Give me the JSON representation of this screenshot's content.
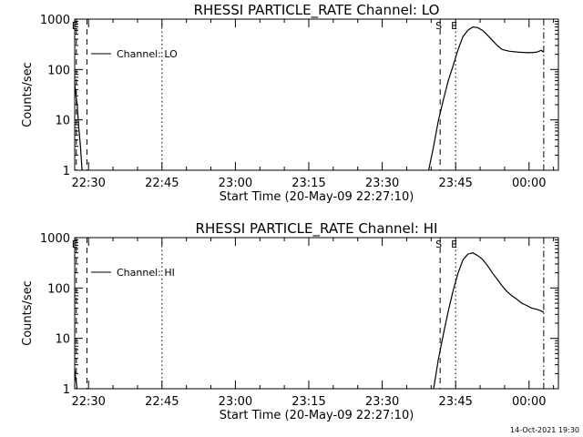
{
  "footer": {
    "timestamp": "14-Oct-2021 19:30"
  },
  "chart_data": [
    {
      "type": "line",
      "title": "RHESSI PARTICLE_RATE Channel: LO",
      "xlabel": "Start Time (20-May-09 22:27:10)",
      "ylabel": "Counts/sec",
      "yscale": "log",
      "ylim": [
        1,
        1000
      ],
      "x_range": [
        "22:27:10",
        "00:06:00"
      ],
      "x_ticks": [
        "22:30",
        "22:45",
        "23:00",
        "23:15",
        "23:30",
        "23:45",
        "00:00"
      ],
      "y_ticks": [
        "1",
        "10",
        "100",
        "1000"
      ],
      "legend": {
        "label": "Channel: LO",
        "position": "top-left"
      },
      "markers": [
        {
          "label": "E",
          "time": "22:27:30",
          "style": "dashed"
        },
        {
          "time": "22:29:40",
          "style": "dashed"
        },
        {
          "time": "22:45:00",
          "style": "dotted"
        },
        {
          "label": "S",
          "time": "23:41:50",
          "style": "dashed"
        },
        {
          "label": "E",
          "time": "23:45:00",
          "style": "dotted"
        },
        {
          "time": "00:03:00",
          "style": "dashdot"
        }
      ],
      "series": [
        {
          "segments": [
            [
              [
                "22:27:10",
                50
              ],
              [
                "22:27:40",
                20
              ],
              [
                "22:28:00",
                7
              ],
              [
                "22:28:20",
                3
              ],
              [
                "22:28:40",
                1
              ]
            ],
            [
              [
                "23:39:30",
                1
              ],
              [
                "23:40:30",
                3
              ],
              [
                "23:41:30",
                10
              ],
              [
                "23:42:30",
                25
              ],
              [
                "23:43:30",
                60
              ],
              [
                "23:44:30",
                120
              ],
              [
                "23:45:30",
                250
              ],
              [
                "23:46:30",
                450
              ],
              [
                "23:47:30",
                600
              ],
              [
                "23:48:30",
                700
              ],
              [
                "23:49:30",
                680
              ],
              [
                "23:50:30",
                600
              ],
              [
                "23:51:30",
                480
              ],
              [
                "23:52:30",
                380
              ],
              [
                "23:53:30",
                300
              ],
              [
                "23:54:30",
                250
              ],
              [
                "23:56:00",
                230
              ],
              [
                "23:58:00",
                220
              ],
              [
                "00:00:00",
                215
              ],
              [
                "00:01:30",
                220
              ],
              [
                "00:02:30",
                240
              ],
              [
                "00:03:00",
                220
              ]
            ]
          ]
        }
      ]
    },
    {
      "type": "line",
      "title": "RHESSI PARTICLE_RATE Channel: HI",
      "xlabel": "Start Time (20-May-09 22:27:10)",
      "ylabel": "Counts/sec",
      "yscale": "log",
      "ylim": [
        1,
        1000
      ],
      "x_range": [
        "22:27:10",
        "00:06:00"
      ],
      "x_ticks": [
        "22:30",
        "22:45",
        "23:00",
        "23:15",
        "23:30",
        "23:45",
        "00:00"
      ],
      "y_ticks": [
        "1",
        "10",
        "100",
        "1000"
      ],
      "legend": {
        "label": "Channel: HI",
        "position": "top-left"
      },
      "markers": [
        {
          "label": "E",
          "time": "22:27:30",
          "style": "dashed"
        },
        {
          "time": "22:29:40",
          "style": "dashed"
        },
        {
          "time": "22:45:00",
          "style": "dotted"
        },
        {
          "label": "S",
          "time": "23:41:50",
          "style": "dashed"
        },
        {
          "label": "E",
          "time": "23:45:00",
          "style": "dotted"
        },
        {
          "time": "00:03:00",
          "style": "dashdot"
        }
      ],
      "series": [
        {
          "segments": [
            [
              [
                "22:27:10",
                2.5
              ],
              [
                "22:27:25",
                1.5
              ],
              [
                "22:27:40",
                1
              ]
            ],
            [
              [
                "23:40:30",
                1
              ],
              [
                "23:41:30",
                4
              ],
              [
                "23:42:30",
                12
              ],
              [
                "23:43:30",
                35
              ],
              [
                "23:44:30",
                90
              ],
              [
                "23:45:30",
                200
              ],
              [
                "23:46:30",
                360
              ],
              [
                "23:47:30",
                470
              ],
              [
                "23:48:30",
                500
              ],
              [
                "23:49:30",
                440
              ],
              [
                "23:50:30",
                370
              ],
              [
                "23:51:30",
                280
              ],
              [
                "23:52:30",
                200
              ],
              [
                "23:53:30",
                150
              ],
              [
                "23:54:30",
                110
              ],
              [
                "23:55:30",
                85
              ],
              [
                "23:56:30",
                70
              ],
              [
                "23:57:30",
                60
              ],
              [
                "23:58:30",
                50
              ],
              [
                "23:59:30",
                45
              ],
              [
                "00:00:30",
                40
              ],
              [
                "00:01:30",
                38
              ],
              [
                "00:02:30",
                35
              ],
              [
                "00:03:00",
                33
              ]
            ]
          ]
        }
      ]
    }
  ]
}
